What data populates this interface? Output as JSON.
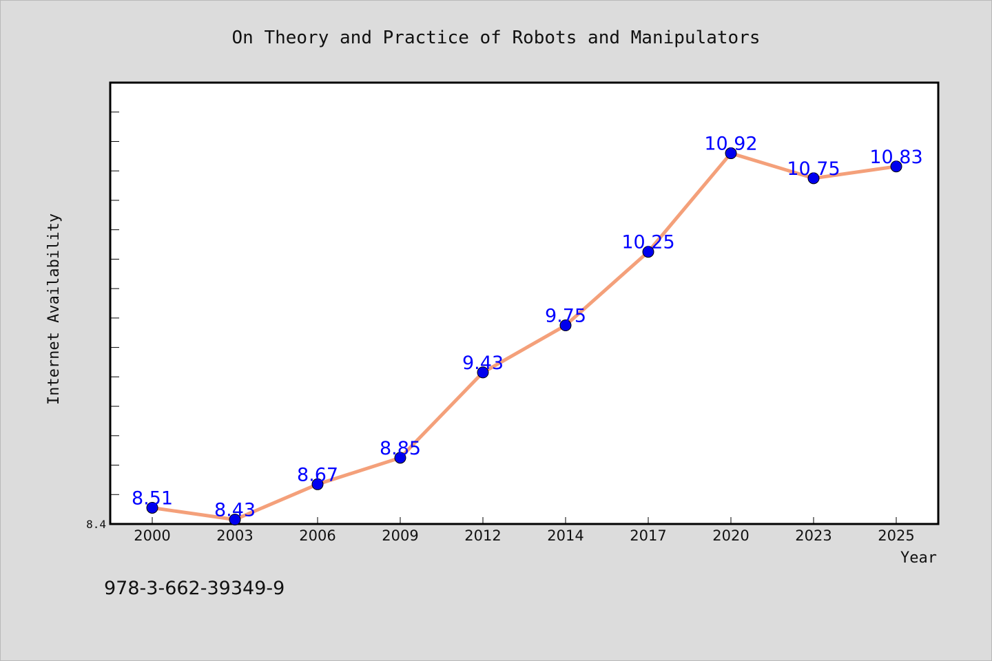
{
  "chart_data": {
    "type": "line",
    "title": "On Theory and Practice of Robots and Manipulators",
    "xlabel": "Year",
    "ylabel": "Internet Availability",
    "categories": [
      "2000",
      "2003",
      "2006",
      "2009",
      "2012",
      "2014",
      "2017",
      "2020",
      "2023",
      "2025"
    ],
    "series": [
      {
        "values": [
          8.51,
          8.43,
          8.67,
          8.85,
          9.43,
          9.75,
          10.25,
          10.92,
          10.75,
          10.83
        ]
      }
    ],
    "data_labels": [
      "8.51",
      "8.43",
      "8.67",
      "8.85",
      "9.43",
      "9.75",
      "10.25",
      "10.92",
      "10.75",
      "10.83"
    ],
    "ytick_labels": [
      "8.4"
    ],
    "ylim": [
      8.4,
      11.4
    ],
    "grid": false,
    "legend": "none",
    "colors": {
      "line": "#f4a07a",
      "marker": "#0000ee",
      "data_label": "#0000ff",
      "background": "#dcdcdc",
      "plot_background": "#ffffff"
    }
  },
  "footer": {
    "isbn": "978-3-662-39349-9"
  }
}
